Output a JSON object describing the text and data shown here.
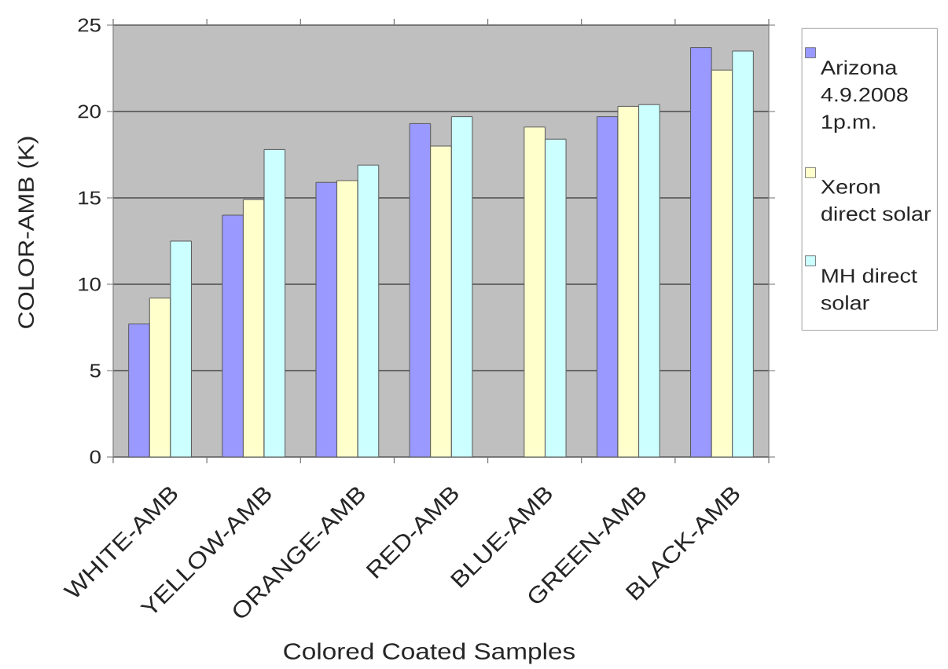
{
  "chart_data": {
    "type": "bar",
    "xlabel": "Colored Coated Samples",
    "ylabel": "COLOR-AMB (K)",
    "categories": [
      "WHITE-AMB",
      "YELLOW-AMB",
      "ORANGE-AMB",
      "RED-AMB",
      "BLUE-AMB",
      "GREEN-AMB",
      "BLACK-AMB"
    ],
    "series": [
      {
        "name": "Arizona 4.9.2008 1p.m.",
        "color": "#9999ff",
        "values": [
          7.7,
          14.0,
          15.9,
          19.3,
          null,
          19.7,
          23.7
        ]
      },
      {
        "name": "Xeron direct solar",
        "color": "#ffffcc",
        "values": [
          9.2,
          14.9,
          16.0,
          18.0,
          19.1,
          20.3,
          22.4
        ]
      },
      {
        "name": "MH direct solar",
        "color": "#ccffff",
        "values": [
          12.5,
          17.8,
          16.9,
          19.7,
          18.4,
          20.4,
          23.5
        ]
      }
    ],
    "ylim": [
      0,
      25
    ],
    "yticks": [
      0,
      5,
      10,
      15,
      20,
      25
    ],
    "grid": "y",
    "legend": "right"
  }
}
